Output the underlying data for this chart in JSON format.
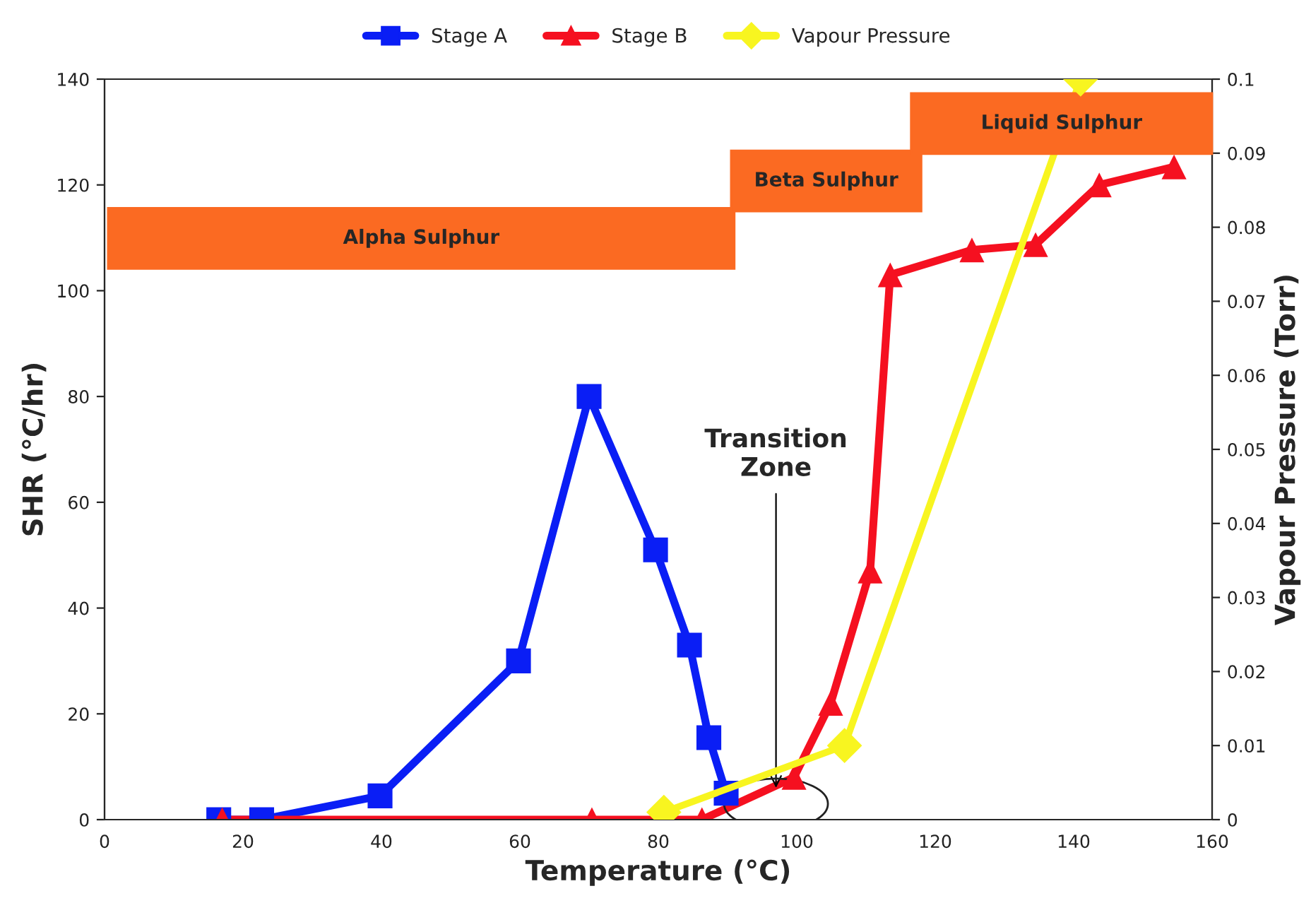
{
  "chart_data": {
    "type": "line",
    "xlabel": "Temperature (°C)",
    "ylabel": "SHR (°C/hr)",
    "y2label": "Vapour Pressure (Torr)",
    "xlim": [
      0,
      160
    ],
    "xticks": [
      0,
      20,
      40,
      60,
      80,
      100,
      120,
      140,
      160
    ],
    "ylim": [
      0,
      140
    ],
    "yticks": [
      0,
      20,
      40,
      60,
      80,
      100,
      120,
      140
    ],
    "y2lim": [
      0,
      0.1
    ],
    "y2ticks": [
      0,
      0.01,
      0.02,
      0.03,
      0.04,
      0.05,
      0.06,
      0.07,
      0.08,
      0.09,
      0.1
    ],
    "grid": false,
    "legend": "top",
    "series": [
      {
        "name": "Stage A",
        "color": "#0a1ef5",
        "marker": "square",
        "x": [
          16.5,
          22.7,
          39.8,
          59.8,
          70,
          79.6,
          84.5,
          87.3,
          89.8
        ],
        "values": [
          0,
          0,
          4.5,
          30,
          80,
          51,
          33,
          15.5,
          5
        ]
      },
      {
        "name": "Stage B",
        "color": "#f51020",
        "marker": "triangle",
        "x": [
          17,
          70.4,
          86.3,
          99.6,
          104.9,
          110.6,
          113.5,
          125.3,
          134.5,
          143.7,
          154.5
        ],
        "values": [
          0,
          0,
          0,
          8,
          22,
          47,
          103,
          107.7,
          108.7,
          120,
          123.4
        ]
      },
      {
        "name": "Vapour Pressure",
        "color": "#f8f520",
        "marker": "diamond",
        "axis": "y2",
        "x": [
          80.8,
          106.9,
          141
        ],
        "values": [
          0.001,
          0.01,
          0.1
        ]
      }
    ],
    "bands": [
      {
        "axis": "x",
        "from": 0.5,
        "to": 91,
        "label": "Alpha Sulphur",
        "color": "#fb6a22"
      },
      {
        "axis": "x",
        "from": 90.5,
        "to": 118,
        "label": "Beta Sulphur",
        "color": "#fb6a22"
      },
      {
        "axis": "x",
        "from": 116.5,
        "to": 160,
        "label": "Liquid Sulphur",
        "color": "#fb6a22"
      }
    ],
    "annotations": [
      {
        "text": "Transition\nZone",
        "x": 97,
        "y": 6
      }
    ]
  }
}
